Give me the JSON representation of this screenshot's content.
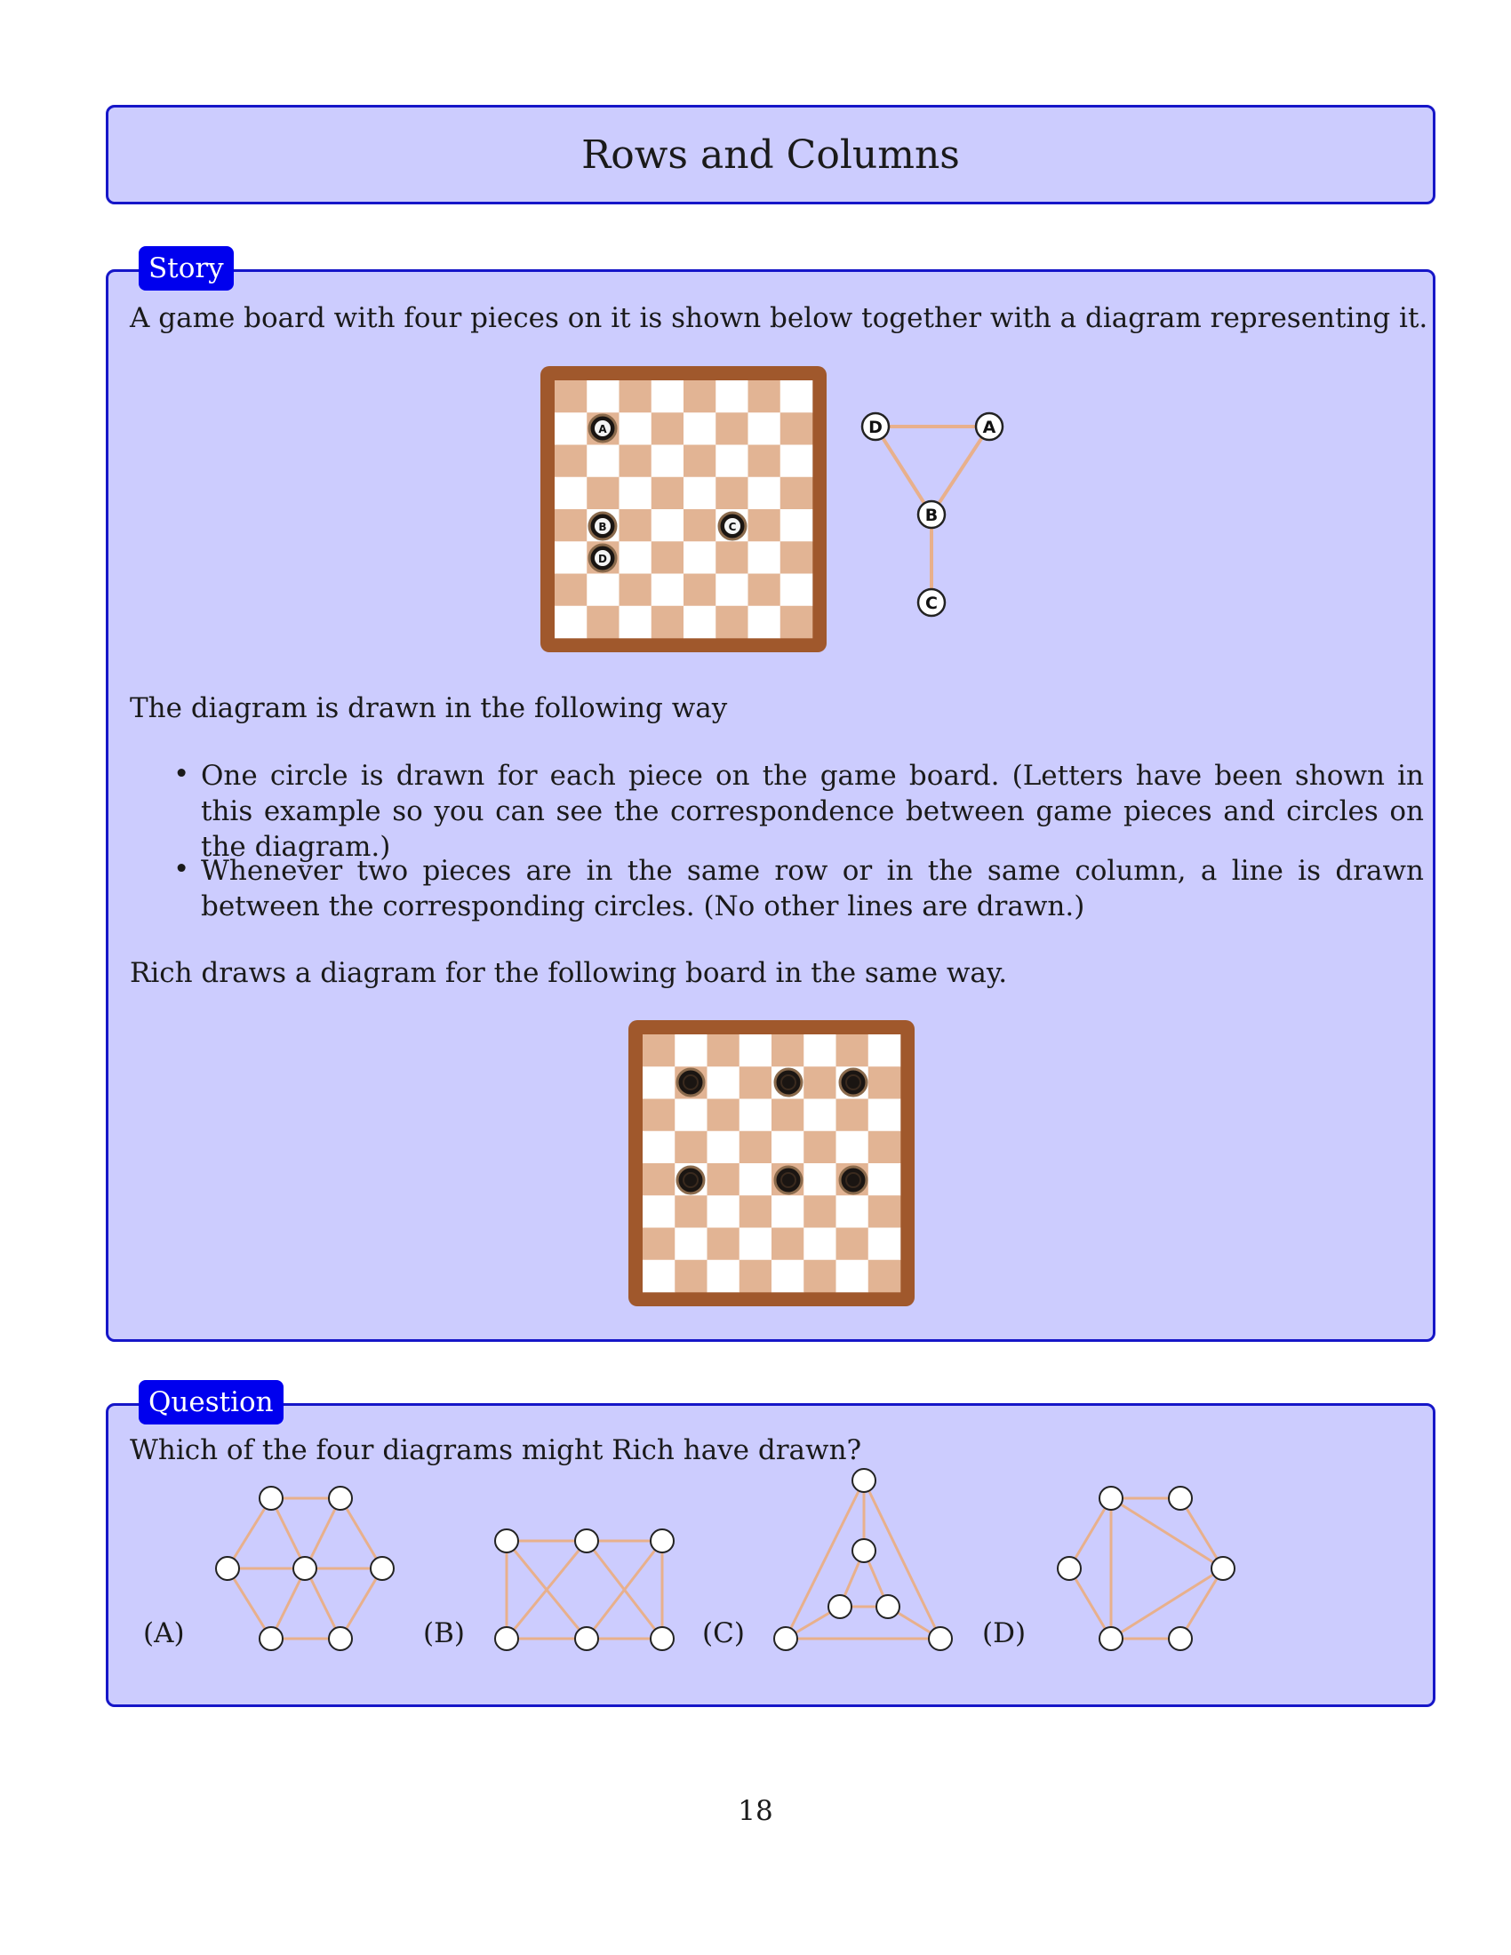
{
  "title": "Rows and Columns",
  "story": {
    "tab": "Story",
    "intro": "A game board with four pieces on it is shown below together with a diagram representing it.",
    "example_pieces": [
      "A",
      "B",
      "C",
      "D"
    ],
    "lead": "The diagram is drawn in the following way",
    "bullets": [
      "One circle is drawn for each piece on the game board. (Letters have been shown in this example so you can see the correspondence between game pieces and circles on the diagram.)",
      "Whenever two pieces are in the same row or in the same column, a line is drawn between the corresponding circles. (No other lines are drawn.)"
    ],
    "task": "Rich draws a diagram for the following board in the same way."
  },
  "question": {
    "tab": "Question",
    "prompt": "Which of the four diagrams might Rich have drawn?",
    "options": [
      "(A)",
      "(B)",
      "(C)",
      "(D)"
    ]
  },
  "page_number": "18",
  "colors": {
    "panel_fill": "#ccccfe",
    "panel_border": "#1616c8",
    "tab_fill": "#0000ee",
    "board_frame": "#a0582c",
    "board_dark": "#e2b494",
    "board_light": "#ffffff",
    "edge": "#e8b08c"
  }
}
